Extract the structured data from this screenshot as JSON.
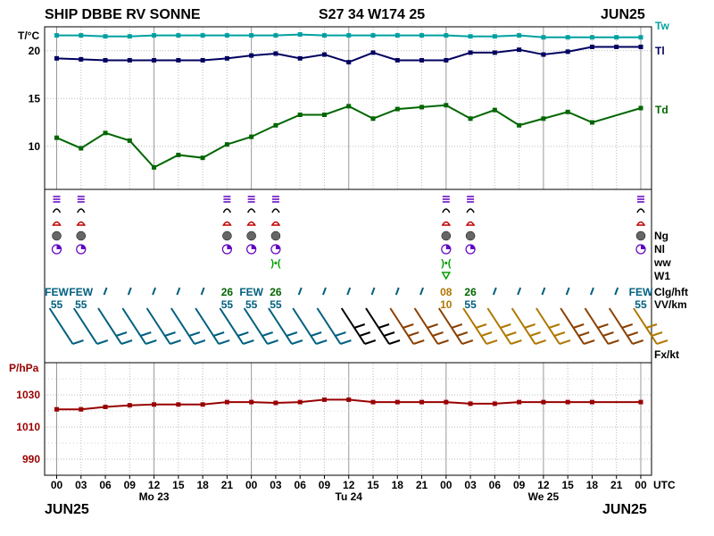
{
  "header": {
    "station": "SHIP DBBE RV SONNE",
    "position": "S27 34 W174 25",
    "date": "JUN25"
  },
  "footer": {
    "left": "JUN25",
    "right": "JUN25"
  },
  "colors": {
    "tw": "#00a0a0",
    "tl": "#000060",
    "td": "#006600",
    "pressure": "#990000",
    "wind_a": "#006080",
    "wind_b": "#000000",
    "wind_c": "#8b4000",
    "wind_d": "#b07800",
    "clouds": "#006080"
  },
  "x_axis": {
    "ticks": [
      "00",
      "03",
      "06",
      "09",
      "12",
      "15",
      "18",
      "21",
      "00",
      "03",
      "06",
      "09",
      "12",
      "15",
      "18",
      "21",
      "00",
      "03",
      "06",
      "09",
      "12",
      "15",
      "18",
      "21",
      "00"
    ],
    "days": [
      {
        "label": "Mo 23",
        "x_index": 4
      },
      {
        "label": "Tu 24",
        "x_index": 12
      },
      {
        "label": "We 25",
        "x_index": 20
      }
    ],
    "utc_label": "UTC"
  },
  "temperature_panel": {
    "y_label": "T/°C",
    "y_ticks": [
      10,
      15,
      20
    ],
    "ylim": [
      5.5,
      22.5
    ],
    "labels": {
      "tw": "Tw",
      "tl": "Tl",
      "td": "Td"
    }
  },
  "pressure_panel": {
    "y_label": "P/hPa",
    "y_ticks": [
      990,
      1010,
      1030
    ],
    "ylim": [
      980,
      1050
    ]
  },
  "obs_labels": {
    "ng": "Ng",
    "nl": "Nl",
    "ww": "ww",
    "w1": "W1",
    "clg": "Clg/hft",
    "vv": "VV/km",
    "fx": "Fx/kt"
  },
  "chart_data": {
    "type": "line",
    "x": [
      0,
      3,
      6,
      9,
      12,
      15,
      18,
      21,
      24,
      27,
      30,
      33,
      36,
      39,
      42,
      45,
      48,
      51,
      54,
      57,
      60,
      63,
      66,
      69,
      72
    ],
    "x_unit": "hours from JUN23 00 UTC",
    "series": [
      {
        "name": "Tw",
        "x": [
          0,
          3,
          6,
          9,
          12,
          15,
          18,
          21,
          24,
          27,
          30,
          33,
          36,
          39,
          42,
          45,
          48,
          51,
          54,
          57,
          60,
          63,
          66,
          69,
          72
        ],
        "values": [
          21.6,
          21.6,
          21.5,
          21.5,
          21.6,
          21.6,
          21.6,
          21.6,
          21.6,
          21.6,
          21.7,
          21.6,
          21.6,
          21.6,
          21.6,
          21.6,
          21.6,
          21.5,
          21.5,
          21.6,
          21.4,
          21.4,
          21.4,
          21.4,
          21.4
        ]
      },
      {
        "name": "Tl",
        "x": [
          0,
          3,
          6,
          9,
          12,
          15,
          18,
          21,
          24,
          27,
          30,
          33,
          36,
          39,
          42,
          45,
          48,
          51,
          54,
          57,
          60,
          63,
          66,
          69,
          72
        ],
        "values": [
          19.2,
          19.1,
          19.0,
          19.0,
          19.0,
          19.0,
          19.0,
          19.2,
          19.5,
          19.7,
          19.2,
          19.6,
          18.8,
          19.8,
          19.0,
          19.0,
          19.0,
          19.8,
          19.8,
          20.1,
          19.6,
          19.9,
          20.4,
          20.4,
          20.4
        ]
      },
      {
        "name": "Td",
        "x": [
          0,
          3,
          6,
          9,
          12,
          15,
          18,
          21,
          24,
          27,
          30,
          33,
          36,
          39,
          42,
          45,
          48,
          51,
          54,
          57,
          60,
          63,
          66,
          69,
          72
        ],
        "values": [
          10.9,
          9.8,
          11.4,
          10.6,
          7.8,
          9.1,
          8.8,
          10.2,
          11.0,
          12.2,
          13.3,
          13.3,
          14.2,
          12.9,
          13.9,
          14.1,
          14.3,
          12.9,
          13.8,
          12.2,
          12.9,
          13.6,
          12.5,
          null,
          14.0
        ]
      },
      {
        "name": "P",
        "x": [
          0,
          3,
          6,
          9,
          12,
          15,
          18,
          21,
          24,
          27,
          30,
          33,
          36,
          39,
          42,
          45,
          48,
          51,
          54,
          57,
          60,
          63,
          66,
          69,
          72
        ],
        "values": [
          1021,
          1021,
          1022.5,
          1023.5,
          1024,
          1024,
          1024,
          1025.5,
          1025.5,
          1025,
          1025.5,
          1027,
          1027,
          1025.5,
          1025.5,
          1025.5,
          1025.5,
          1024.5,
          1024.5,
          1025.5,
          1025.5,
          1025.5,
          1025.5,
          null,
          1025.5
        ]
      }
    ],
    "clouds": [
      {
        "x_index": 0,
        "clg": "FEW",
        "vv": "55"
      },
      {
        "x_index": 1,
        "clg": "FEW",
        "vv": "55"
      },
      {
        "x_index": 7,
        "clg": "26",
        "vv": "55"
      },
      {
        "x_index": 8,
        "clg": "FEW",
        "vv": "55"
      },
      {
        "x_index": 9,
        "clg": "26",
        "vv": "55"
      },
      {
        "x_index": 16,
        "clg": "08",
        "vv": "10"
      },
      {
        "x_index": 17,
        "clg": "26",
        "vv": "55"
      },
      {
        "x_index": 24,
        "clg": "FEW",
        "vv": "55"
      }
    ],
    "grid": true
  }
}
